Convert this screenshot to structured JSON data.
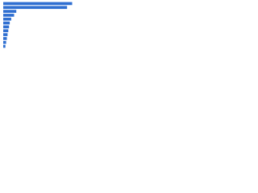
{
  "chart_data": {
    "type": "bar",
    "orientation": "horizontal",
    "categories": [
      null,
      null,
      null,
      null,
      null,
      null,
      null,
      null,
      null,
      null,
      null,
      null
    ],
    "values": [
      95,
      88,
      18,
      15,
      11,
      9,
      8,
      7,
      6,
      5,
      4,
      3
    ],
    "color": "#2f6fd1",
    "xlim": [
      0,
      100
    ]
  }
}
